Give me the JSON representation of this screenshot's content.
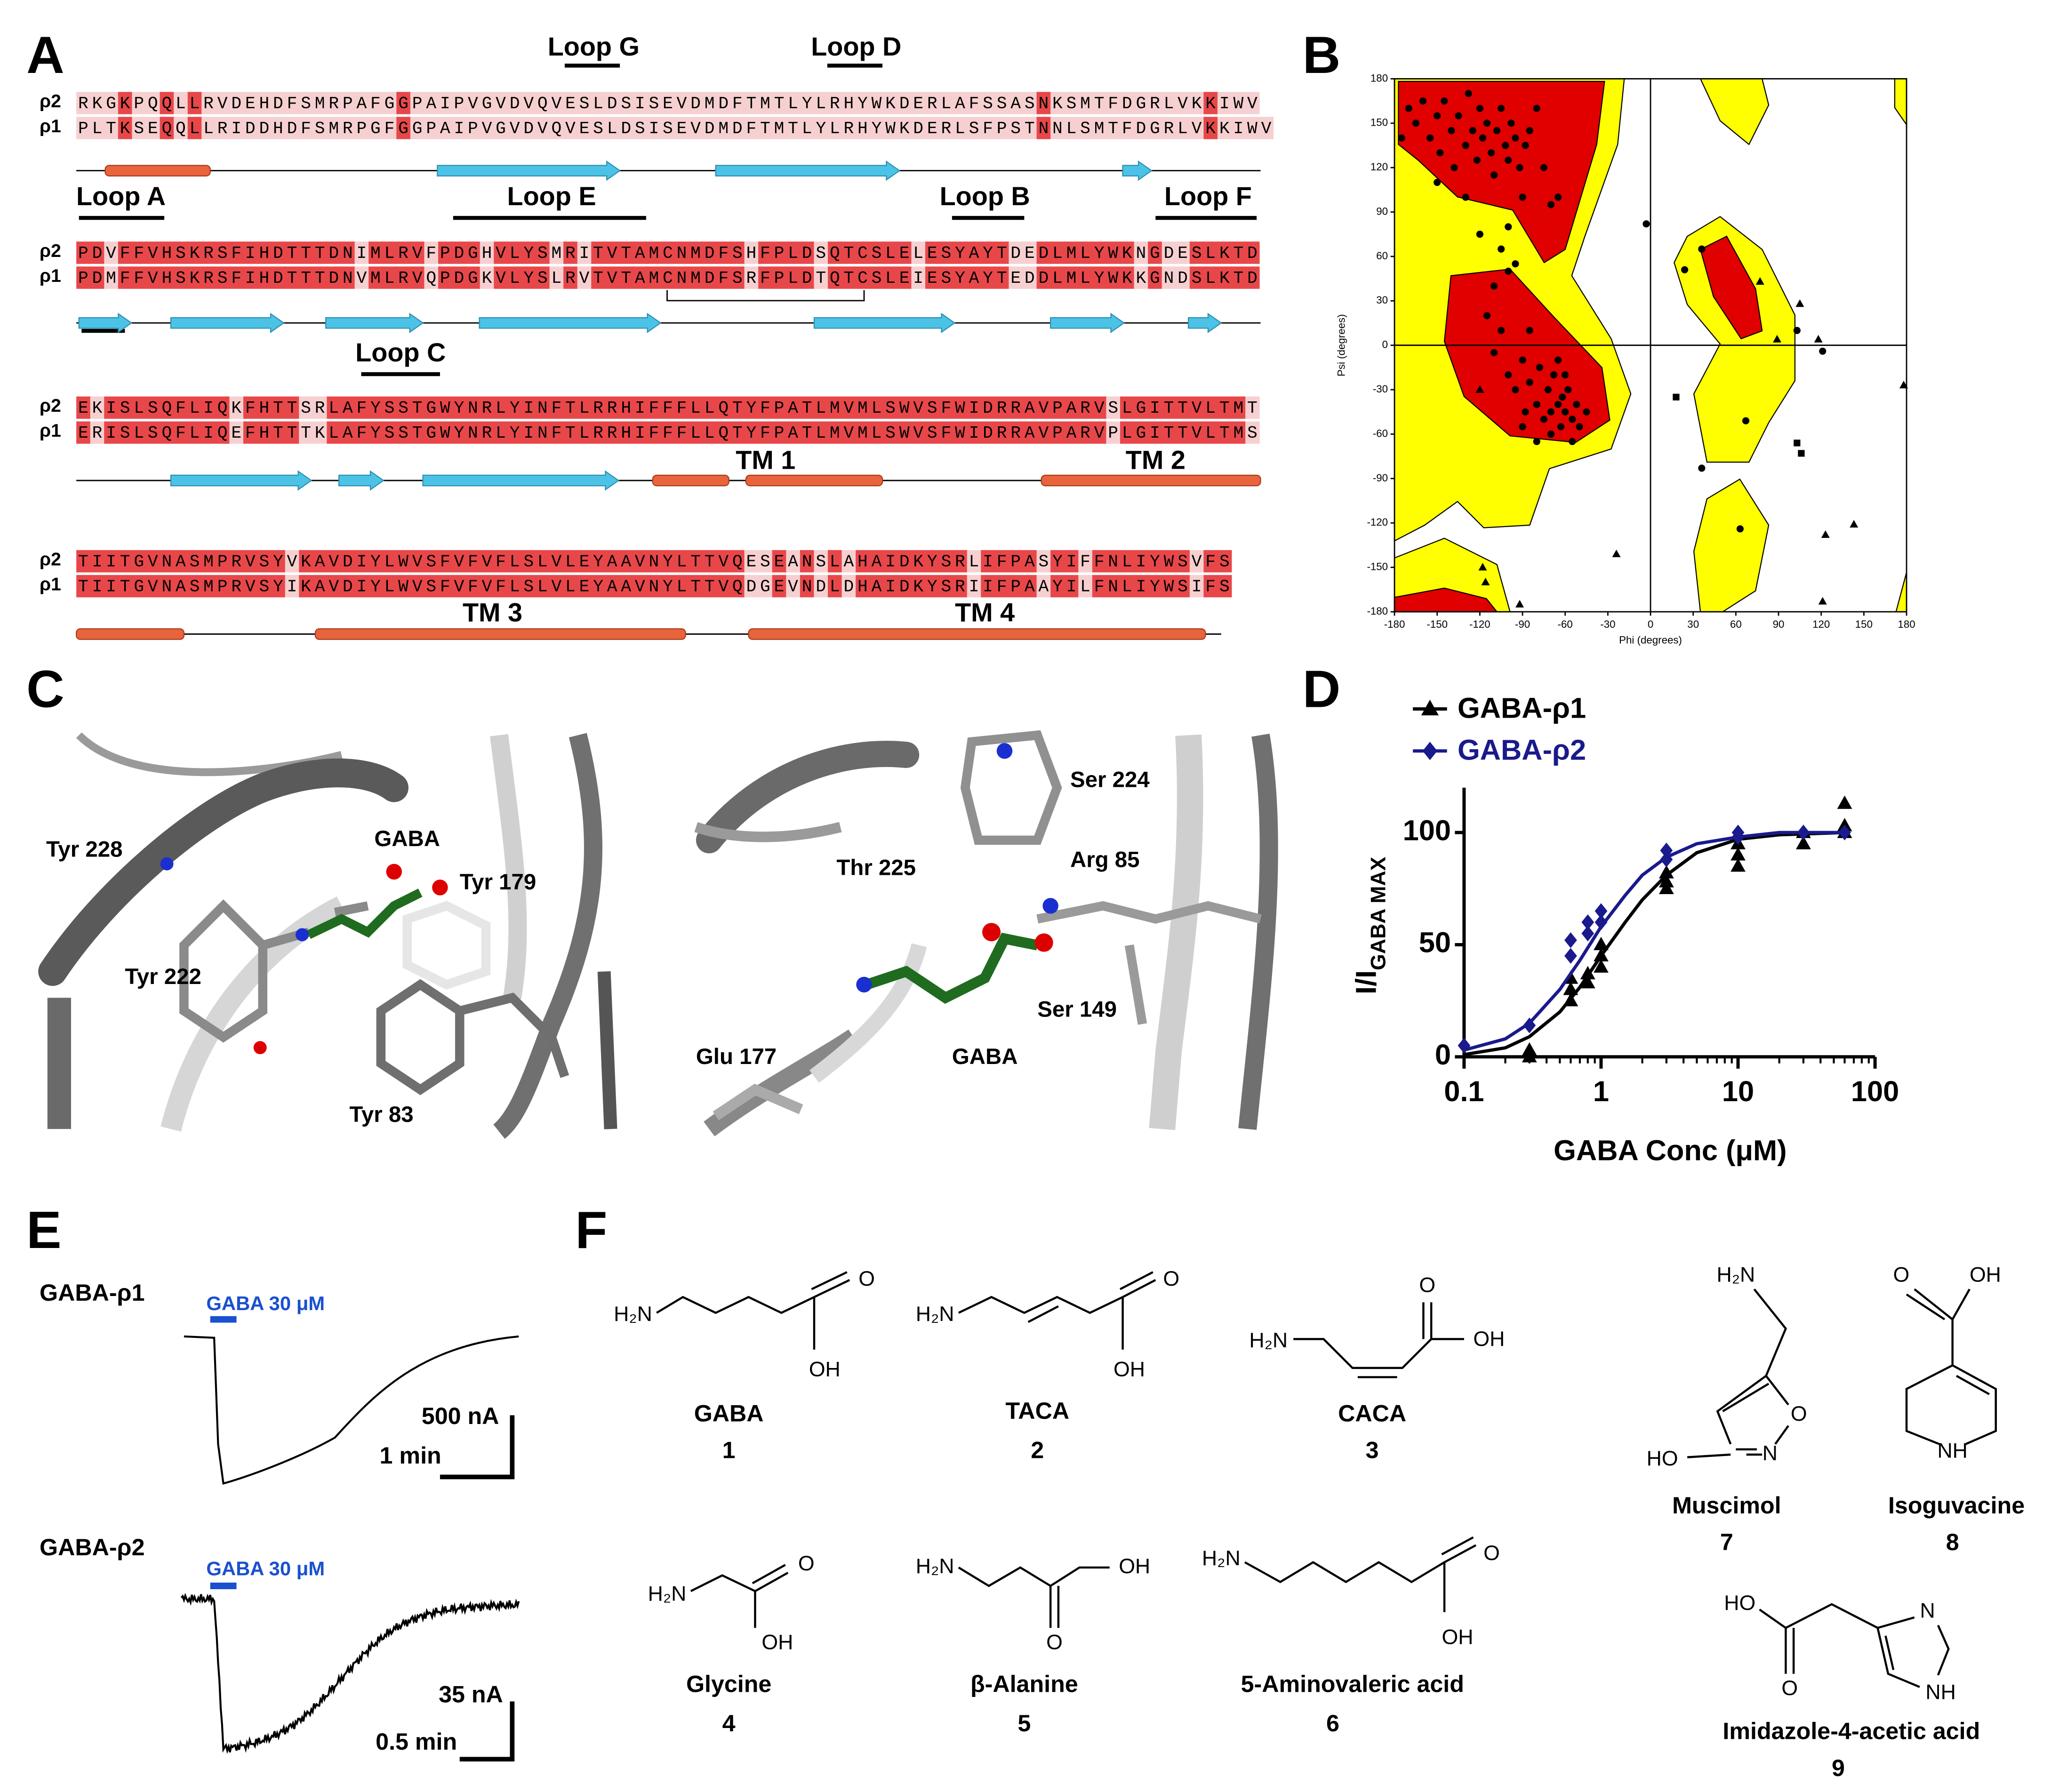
{
  "panel_labels": [
    "A",
    "B",
    "C",
    "D",
    "E",
    "F"
  ],
  "alignment": {
    "row_labels": [
      "ρ2",
      "ρ1"
    ],
    "rows": [
      {
        "rho2": "RKGKPQQLLRVDEHDFSMRPAFGGPAIPVGVDVQVESLDSISEVDMDFTMTLYLRHYWKDERLAFSSASNKSMTFDGRLVKKIWV",
        "rho1": "PLTKSEQQLLRIDDHDFSMRPGFGGPAIPVGVDVQVESLDSISEVDMDFTMTLYLRHYWKDERLSFPSTNNLSMTFDGRLVKKIWV"
      },
      {
        "rho2": "PDVFFVHSKRSFIHDTTTDNIMLRVFPDGHVLYSMRITVTAMCNMDFSHFPLDSQTCSLELESYAYTDEDLMLYWKNGDESLKTD",
        "rho1": "PDMFFVHSKRSFIHDTTTDNVMLRVQPDGKVLYSLRVTVTAMCNMDFSRFPLDTQTCSLEIESYAYTEDDLMLYWKKGNDSLKTD"
      },
      {
        "rho2": "EKISLSQFLIQKFHTTSRLAFYSSTGWYNRLYINFTLRRHIFFFLLQTYFPATLMVMLSWVSFWIDRRAVPARVSLGITTVLTMT",
        "rho1": "ERISLSQFLIQEFHTTTKLAFYSSTGWYNRLYINFTLRRHIFFFLLQTYFPATLMVMLSWVSFWIDRRAVPARVPLGITTVLTMS"
      },
      {
        "rho2": "TIITGVNASMPRVSYVKAVDIYLWVSFVFVFLSLVLEYAAVNYLTTVQESEANSLAHAIDKYSRLIFPASYIFFNLIYWSVFS",
        "rho1": "TIITGVNASMPRVSYIKAVDIYLWVSFVFVFLSLVLEYAAVNYLTTVQDGEVNDLDHAIDKYSRIIFPAAYILFNLIYWSIFS"
      }
    ],
    "loops": [
      "Loop G",
      "Loop D",
      "Loop A",
      "Loop E",
      "Loop B",
      "Loop F",
      "Loop C"
    ],
    "tm": [
      "TM 1",
      "TM 2",
      "TM 3",
      "TM 4"
    ]
  },
  "chart_data": [
    {
      "type": "scatter",
      "xlabel": "Phi (degrees)",
      "ylabel": "Psi (degrees)",
      "xlim": [
        -180,
        180
      ],
      "ylim": [
        -180,
        180
      ],
      "xticks": [
        -180,
        -150,
        -120,
        -90,
        -60,
        -30,
        0,
        30,
        60,
        90,
        120,
        150,
        180
      ],
      "yticks": [
        -180,
        -150,
        -120,
        -90,
        -60,
        -30,
        0,
        30,
        60,
        90,
        120,
        150,
        180
      ],
      "color": "#000000",
      "x": [
        -170,
        -165,
        -160,
        -155,
        -150,
        -148,
        -145,
        -140,
        -138,
        -135,
        -130,
        -128,
        -125,
        -122,
        -120,
        -118,
        -115,
        -112,
        -110,
        -108,
        -105,
        -102,
        -100,
        -98,
        -95,
        -92,
        -90,
        -88,
        -85,
        -80,
        -75,
        -70,
        -65,
        -100,
        -105,
        -95,
        -175,
        -150,
        -130,
        -120,
        -115,
        -110,
        -105,
        -100,
        -95,
        -90,
        -88,
        -85,
        -80,
        -78,
        -75,
        -72,
        -70,
        -68,
        -65,
        -63,
        -62,
        -60,
        -58,
        -55,
        -55,
        -52,
        -50,
        -65,
        -70,
        -80,
        -60,
        -110,
        -100,
        -120,
        -90,
        -45,
        -85,
        -3,
        24,
        36,
        77,
        89,
        103,
        118,
        121,
        105,
        18,
        36,
        67,
        103,
        106,
        63,
        143,
        123,
        121,
        178,
        -24,
        -118,
        -116,
        -92
      ],
      "values": [
        160,
        150,
        165,
        140,
        155,
        130,
        165,
        145,
        120,
        155,
        135,
        170,
        145,
        125,
        160,
        140,
        150,
        130,
        115,
        145,
        160,
        135,
        125,
        150,
        140,
        120,
        100,
        135,
        145,
        160,
        120,
        95,
        100,
        80,
        65,
        55,
        140,
        110,
        100,
        75,
        20,
        -5,
        10,
        -20,
        -30,
        -10,
        -45,
        -25,
        -40,
        -15,
        -50,
        -30,
        -45,
        -20,
        -40,
        -55,
        -35,
        -45,
        -30,
        -50,
        -65,
        -40,
        -55,
        -10,
        -60,
        -65,
        -20,
        40,
        50,
        -30,
        -55,
        -45,
        10,
        82,
        51,
        65,
        43,
        4,
        10,
        4,
        -4,
        28,
        -35,
        -83,
        -51,
        -66,
        -73,
        -124,
        -121,
        -128,
        -173,
        -27,
        -141,
        -150,
        -160,
        -175
      ],
      "markers": [
        "circle",
        "circle",
        "circle",
        "circle",
        "circle",
        "circle",
        "circle",
        "circle",
        "circle",
        "circle",
        "circle",
        "circle",
        "circle",
        "circle",
        "circle",
        "circle",
        "circle",
        "circle",
        "circle",
        "circle",
        "circle",
        "circle",
        "circle",
        "circle",
        "circle",
        "circle",
        "circle",
        "circle",
        "circle",
        "circle",
        "circle",
        "circle",
        "circle",
        "circle",
        "circle",
        "circle",
        "circle",
        "circle",
        "circle",
        "circle",
        "circle",
        "circle",
        "circle",
        "circle",
        "circle",
        "circle",
        "circle",
        "circle",
        "circle",
        "circle",
        "circle",
        "circle",
        "circle",
        "circle",
        "circle",
        "circle",
        "circle",
        "circle",
        "circle",
        "circle",
        "circle",
        "circle",
        "circle",
        "circle",
        "circle",
        "circle",
        "circle",
        "circle",
        "circle",
        "triangle",
        "circle",
        "circle",
        "circle",
        "circle",
        "circle",
        "circle",
        "triangle",
        "triangle",
        "circle",
        "triangle",
        "circle",
        "triangle",
        "square",
        "circle",
        "circle",
        "square",
        "square",
        "circle",
        "triangle",
        "triangle",
        "triangle",
        "triangle",
        "triangle",
        "triangle",
        "triangle",
        "triangle"
      ],
      "crosshair": true
    },
    {
      "type": "scatter",
      "xscale": "log",
      "xlabel": "GABA Conc (μM)",
      "ylabel": "I/I",
      "ylabel_sub": "GABA MAX",
      "xlim": [
        0.1,
        100
      ],
      "ylim": [
        0,
        120
      ],
      "xticks": [
        0.1,
        1,
        10,
        100
      ],
      "yticks": [
        0,
        50,
        100
      ],
      "series": [
        {
          "name": "GABA-ρ1",
          "color": "#000000",
          "marker": "triangle",
          "x": [
            0.3,
            0.3,
            0.6,
            0.6,
            0.6,
            0.8,
            0.8,
            1,
            1,
            1,
            3,
            3,
            3,
            10,
            10,
            10,
            30,
            30,
            60,
            60,
            60
          ],
          "values": [
            0,
            3,
            25,
            30,
            35,
            33,
            37,
            40,
            45,
            50,
            75,
            78,
            82,
            85,
            90,
            95,
            95,
            100,
            100,
            103,
            113
          ],
          "fit": {
            "x": [
              0.1,
              0.2,
              0.3,
              0.5,
              0.7,
              1,
              1.5,
              2,
              3,
              5,
              10,
              20,
              60
            ],
            "values": [
              1,
              4,
              9,
              20,
              31,
              45,
              60,
              70,
              81,
              91,
              97,
              99,
              100
            ]
          }
        },
        {
          "name": "GABA-ρ2",
          "color": "#1a1a8c",
          "marker": "diamond",
          "x": [
            0.1,
            0.3,
            0.6,
            0.6,
            0.8,
            0.8,
            1,
            1,
            3,
            3,
            10,
            10,
            30,
            60
          ],
          "values": [
            5,
            14,
            45,
            52,
            55,
            60,
            60,
            65,
            88,
            92,
            98,
            100,
            100,
            100
          ],
          "fit": {
            "x": [
              0.1,
              0.2,
              0.3,
              0.5,
              0.7,
              1,
              1.5,
              2,
              3,
              5,
              10,
              20,
              60
            ],
            "values": [
              3,
              8,
              15,
              30,
              43,
              58,
              72,
              81,
              89,
              95,
              98,
              100,
              100
            ]
          }
        }
      ]
    }
  ],
  "structures": {
    "left": [
      "Tyr 228",
      "GABA",
      "Tyr 179",
      "Tyr 222",
      "Tyr 83"
    ],
    "right": [
      "Ser 224",
      "Thr 225",
      "Arg 85",
      "Ser 149",
      "Glu 177",
      "GABA"
    ]
  },
  "traces": [
    {
      "label": "GABA-ρ1",
      "application": "GABA 30 μM",
      "current_scale": "500 nA",
      "time_scale": "1 min"
    },
    {
      "label": "GABA-ρ2",
      "application": "GABA 30 μM",
      "current_scale": "35 nA",
      "time_scale": "0.5 min"
    }
  ],
  "molecules": [
    {
      "name": "GABA",
      "number": 1,
      "atoms": [
        "H₂N",
        "O",
        "OH"
      ]
    },
    {
      "name": "TACA",
      "number": 2,
      "atoms": [
        "H₂N",
        "O",
        "OH"
      ]
    },
    {
      "name": "CACA",
      "number": 3,
      "atoms": [
        "H₂N",
        "O",
        "OH"
      ]
    },
    {
      "name": "Glycine",
      "number": 4,
      "atoms": [
        "H₂N",
        "O",
        "OH"
      ]
    },
    {
      "name": "β-Alanine",
      "number": 5,
      "atoms": [
        "H₂N",
        "OH",
        "O"
      ]
    },
    {
      "name": "5-Aminovaleric acid",
      "number": 6,
      "atoms": [
        "H₂N",
        "O",
        "OH"
      ]
    },
    {
      "name": "Muscimol",
      "number": 7,
      "atoms": [
        "H₂N",
        "O",
        "N",
        "HO"
      ]
    },
    {
      "name": "Isoguvacine",
      "number": 8,
      "atoms": [
        "O",
        "OH",
        "NH"
      ]
    },
    {
      "name": "Imidazole-4-acetic acid",
      "number": 9,
      "atoms": [
        "HO",
        "O",
        "N",
        "NH"
      ]
    }
  ]
}
